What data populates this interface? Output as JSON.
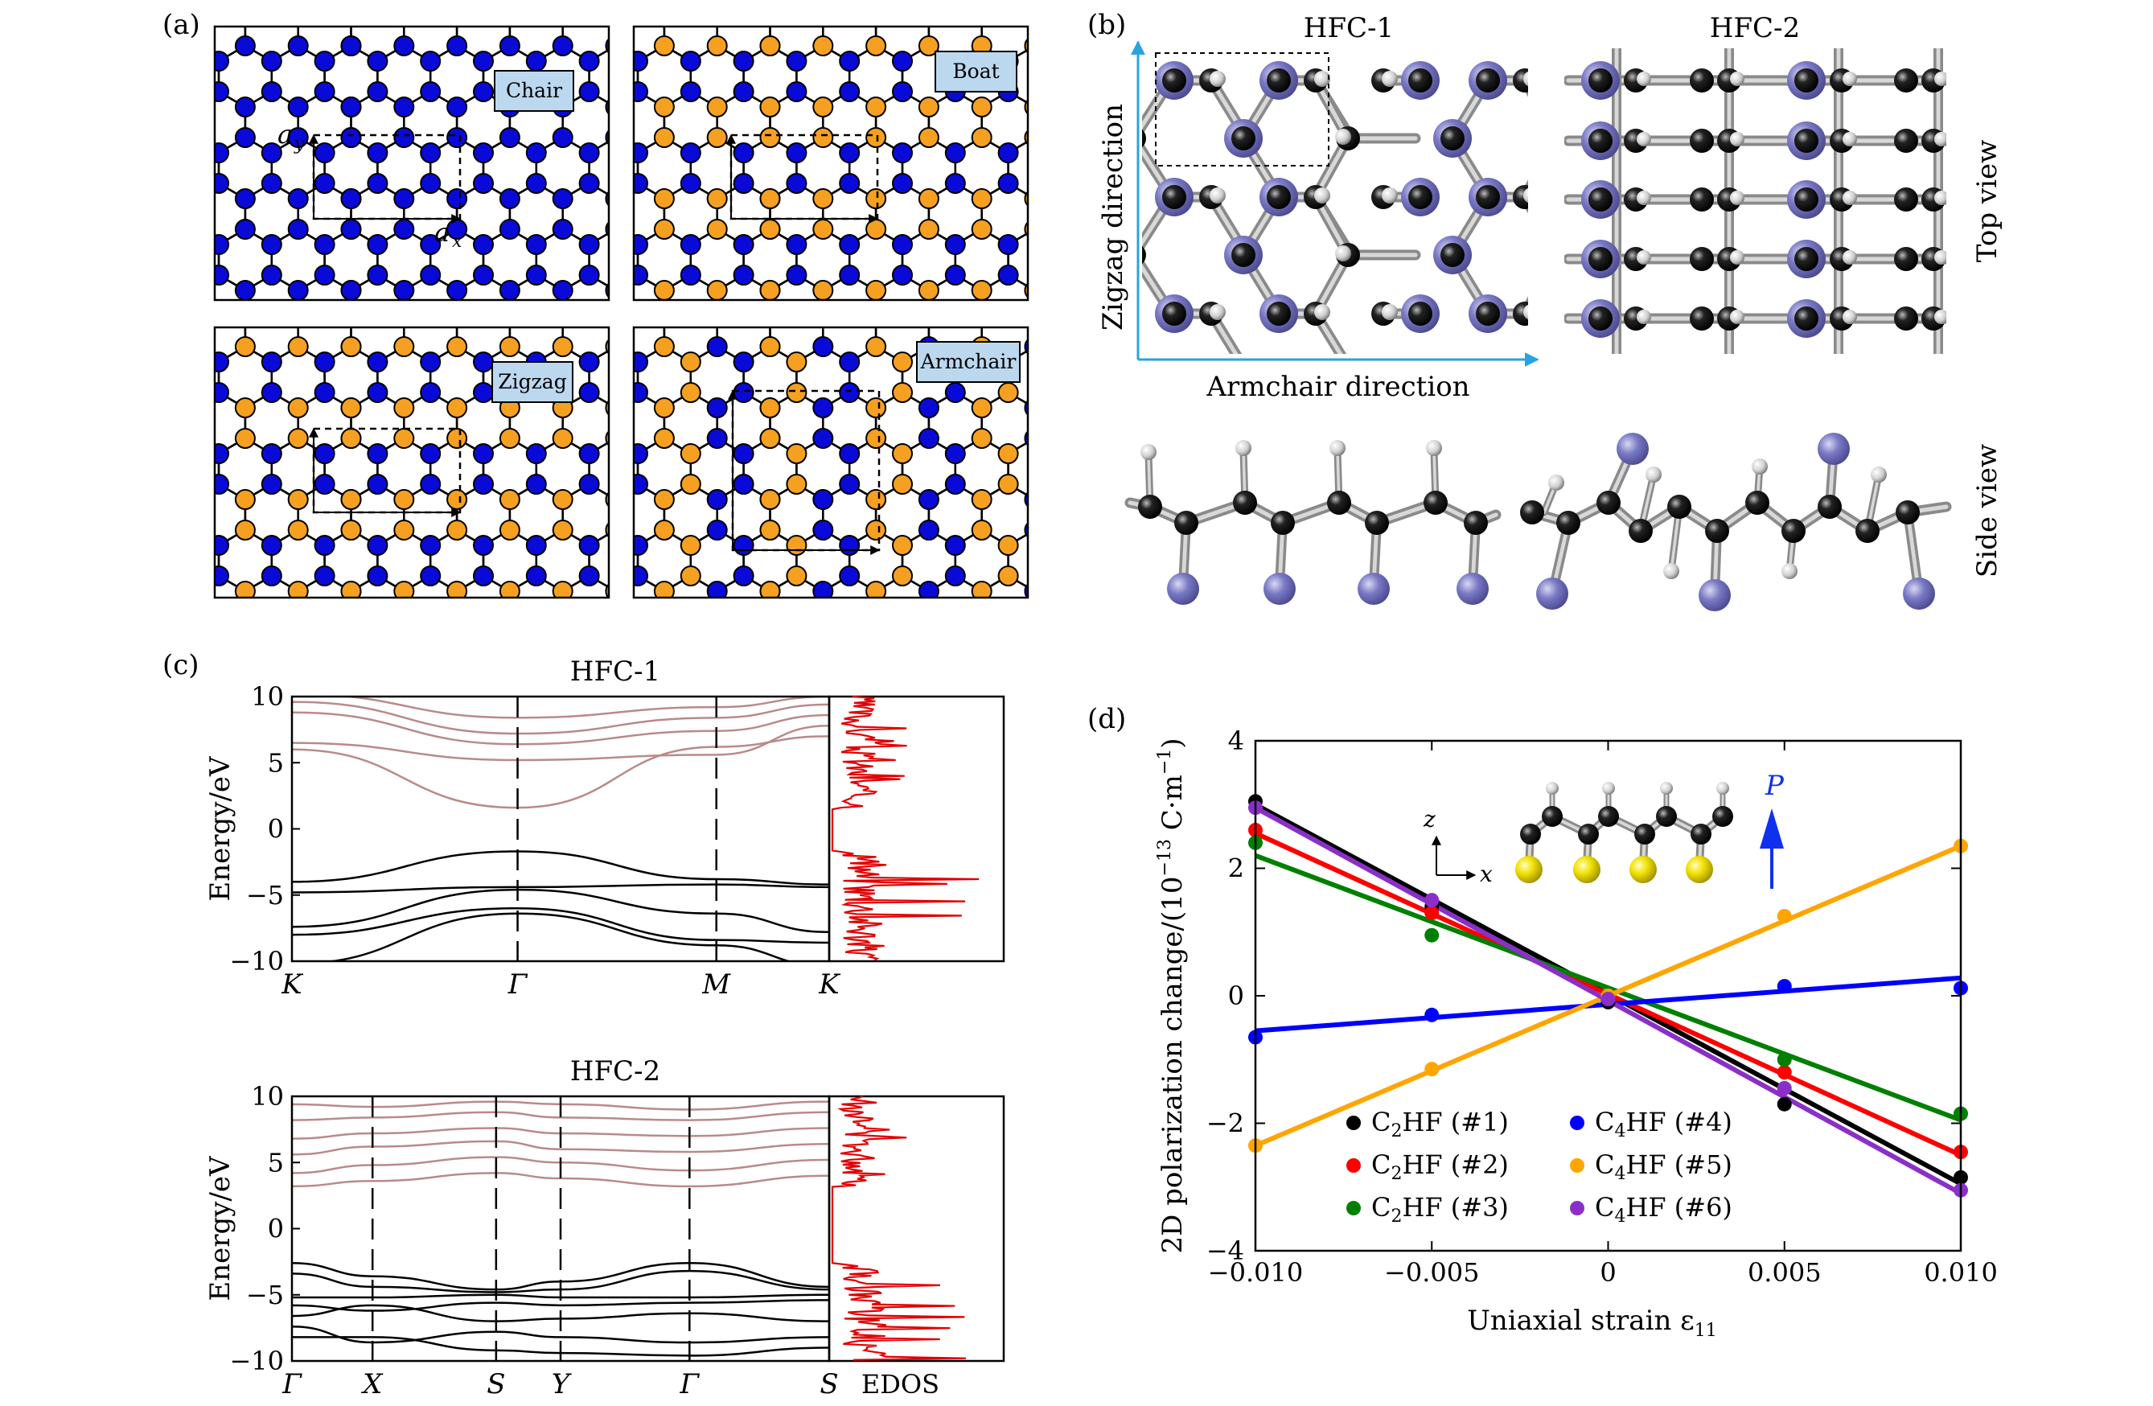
{
  "panels": {
    "a": {
      "label": "(a)",
      "tiles": [
        "Chair",
        "Boat",
        "Zigzag",
        "Armchair"
      ],
      "vector_x": "a",
      "vector_x_sub": "x",
      "vector_y": "a",
      "vector_y_sub": "y"
    },
    "b": {
      "label": "(b)",
      "title_left": "HFC-1",
      "title_right": "HFC-2",
      "zigzag_dir": "Zigzag direction",
      "armchair_dir": "Armchair direction",
      "top_view": "Top view",
      "side_view": "Side view"
    },
    "c": {
      "label": "(c)",
      "ylabel": "Energy/eV",
      "edos_label": "EDOS",
      "colors": {
        "conduction": "#b98a8a",
        "valence": "#000000",
        "edos": "#e00000"
      }
    },
    "d": {
      "label": "(d)",
      "ylabel": "2D polarization change/(10",
      "ylabel_exp": "−13",
      "ylabel_unit": " C·m",
      "ylabel_unit_exp": "−1",
      "ylabel_close": ")",
      "xlabel": "Uniaxial strain ε",
      "xlabel_sub": "11",
      "inset_z": "z",
      "inset_x": "x",
      "inset_p": "P"
    }
  },
  "chart_data": [
    {
      "type": "line",
      "title": "HFC-1",
      "ylabel": "Energy/eV",
      "ylim": [
        -10,
        10
      ],
      "yticks": [
        "10",
        "5",
        "0",
        "−5",
        "−10"
      ],
      "ytick_values": [
        10,
        5,
        0,
        -5,
        -10
      ],
      "kpoints": [
        "K",
        "Γ",
        "M",
        "K"
      ],
      "kpoint_positions": [
        0,
        0.42,
        0.79,
        1
      ],
      "series_groups": [
        {
          "name": "conduction",
          "bands": [
            [
              [
                0,
                6.0
              ],
              [
                0.42,
                1.6
              ],
              [
                0.79,
                6.2
              ],
              [
                1,
                7.0
              ]
            ],
            [
              [
                0,
                6.5
              ],
              [
                0.42,
                5.2
              ],
              [
                0.79,
                5.6
              ],
              [
                1,
                7.8
              ]
            ],
            [
              [
                0,
                8.8
              ],
              [
                0.42,
                6.4
              ],
              [
                0.79,
                7.4
              ],
              [
                1,
                8.6
              ]
            ],
            [
              [
                0,
                9.6
              ],
              [
                0.42,
                7.2
              ],
              [
                0.79,
                8.4
              ],
              [
                1,
                9.4
              ]
            ],
            [
              [
                0,
                10.2
              ],
              [
                0.42,
                8.4
              ],
              [
                0.79,
                9.2
              ],
              [
                1,
                10.0
              ]
            ]
          ]
        },
        {
          "name": "valence",
          "bands": [
            [
              [
                0,
                -4.0
              ],
              [
                0.42,
                -1.7
              ],
              [
                0.79,
                -3.8
              ],
              [
                1,
                -4.2
              ]
            ],
            [
              [
                0,
                -4.8
              ],
              [
                0.42,
                -4.4
              ],
              [
                0.79,
                -4.2
              ],
              [
                1,
                -4.4
              ]
            ],
            [
              [
                0,
                -7.4
              ],
              [
                0.42,
                -4.6
              ],
              [
                0.79,
                -6.4
              ],
              [
                1,
                -7.8
              ]
            ],
            [
              [
                0,
                -8.0
              ],
              [
                0.42,
                -6.0
              ],
              [
                0.79,
                -8.4
              ],
              [
                1,
                -8.6
              ]
            ],
            [
              [
                0,
                -10.2
              ],
              [
                0.42,
                -6.4
              ],
              [
                0.79,
                -8.8
              ],
              [
                1,
                -10.4
              ]
            ]
          ]
        }
      ]
    },
    {
      "type": "line",
      "title": "HFC-2",
      "ylabel": "Energy/eV",
      "ylim": [
        -10,
        10
      ],
      "yticks": [
        "10",
        "5",
        "0",
        "−5",
        "−10"
      ],
      "ytick_values": [
        10,
        5,
        0,
        -5,
        -10
      ],
      "kpoints": [
        "Γ",
        "X",
        "S",
        "Y",
        "Γ",
        "S"
      ],
      "kpoint_positions": [
        0,
        0.15,
        0.38,
        0.5,
        0.74,
        1
      ],
      "xlabel_extra": "EDOS",
      "series_groups": [
        {
          "name": "conduction",
          "bands": [
            [
              [
                0,
                3.2
              ],
              [
                0.15,
                3.6
              ],
              [
                0.38,
                4.2
              ],
              [
                0.5,
                3.8
              ],
              [
                0.74,
                3.2
              ],
              [
                1,
                4.0
              ]
            ],
            [
              [
                0,
                4.2
              ],
              [
                0.15,
                4.8
              ],
              [
                0.38,
                5.4
              ],
              [
                0.5,
                5.0
              ],
              [
                0.74,
                4.4
              ],
              [
                1,
                5.2
              ]
            ],
            [
              [
                0,
                5.6
              ],
              [
                0.15,
                6.2
              ],
              [
                0.38,
                6.6
              ],
              [
                0.5,
                6.0
              ],
              [
                0.74,
                5.8
              ],
              [
                1,
                6.4
              ]
            ],
            [
              [
                0,
                6.8
              ],
              [
                0.15,
                7.2
              ],
              [
                0.38,
                7.6
              ],
              [
                0.5,
                7.2
              ],
              [
                0.74,
                7.0
              ],
              [
                1,
                7.6
              ]
            ],
            [
              [
                0,
                8.2
              ],
              [
                0.15,
                8.4
              ],
              [
                0.38,
                8.8
              ],
              [
                0.5,
                8.4
              ],
              [
                0.74,
                8.2
              ],
              [
                1,
                8.8
              ]
            ],
            [
              [
                0,
                9.4
              ],
              [
                0.15,
                9.2
              ],
              [
                0.38,
                9.6
              ],
              [
                0.5,
                9.4
              ],
              [
                0.74,
                9.0
              ],
              [
                1,
                9.6
              ]
            ]
          ]
        },
        {
          "name": "valence",
          "bands": [
            [
              [
                0,
                -2.6
              ],
              [
                0.15,
                -3.6
              ],
              [
                0.38,
                -4.6
              ],
              [
                0.5,
                -4.0
              ],
              [
                0.74,
                -2.6
              ],
              [
                1,
                -4.4
              ]
            ],
            [
              [
                0,
                -3.4
              ],
              [
                0.15,
                -4.4
              ],
              [
                0.38,
                -4.8
              ],
              [
                0.5,
                -4.6
              ],
              [
                0.74,
                -3.2
              ],
              [
                1,
                -4.6
              ]
            ],
            [
              [
                0,
                -5.2
              ],
              [
                0.15,
                -5.2
              ],
              [
                0.38,
                -5.0
              ],
              [
                0.5,
                -5.2
              ],
              [
                0.74,
                -5.2
              ],
              [
                1,
                -5.0
              ]
            ],
            [
              [
                0,
                -5.8
              ],
              [
                0.15,
                -6.2
              ],
              [
                0.38,
                -5.6
              ],
              [
                0.5,
                -5.8
              ],
              [
                0.74,
                -5.6
              ],
              [
                1,
                -5.4
              ]
            ],
            [
              [
                0,
                -6.6
              ],
              [
                0.15,
                -5.8
              ],
              [
                0.38,
                -7.0
              ],
              [
                0.5,
                -6.8
              ],
              [
                0.74,
                -6.4
              ],
              [
                1,
                -7.0
              ]
            ],
            [
              [
                0,
                -7.4
              ],
              [
                0.15,
                -8.6
              ],
              [
                0.38,
                -7.8
              ],
              [
                0.5,
                -8.2
              ],
              [
                0.74,
                -8.6
              ],
              [
                1,
                -8.2
              ]
            ],
            [
              [
                0,
                -8.2
              ],
              [
                0.15,
                -8.2
              ],
              [
                0.38,
                -9.2
              ],
              [
                0.5,
                -9.4
              ],
              [
                0.74,
                -9.6
              ],
              [
                1,
                -9.0
              ]
            ]
          ]
        }
      ]
    },
    {
      "type": "scatter",
      "xlabel": "Uniaxial strain ε11",
      "ylabel": "2D polarization change/(10−13 C·m−1)",
      "xlim": [
        -0.01,
        0.01
      ],
      "ylim": [
        -4,
        4
      ],
      "xticks": [
        "−0.010",
        "−0.005",
        "0",
        "0.005",
        "0.010"
      ],
      "xtick_values": [
        -0.01,
        -0.005,
        0,
        0.005,
        0.01
      ],
      "yticks": [
        "4",
        "2",
        "0",
        "−2",
        "−4"
      ],
      "ytick_values": [
        4,
        2,
        0,
        -2,
        -4
      ],
      "x": [
        -0.01,
        -0.005,
        0,
        0.005,
        0.01
      ],
      "legend_position": "bottom-left",
      "series": [
        {
          "name": "C2HF (#1)",
          "base": "C",
          "sub": "2",
          "rest": "HF (#1)",
          "color": "#000000",
          "values": [
            3.05,
            1.4,
            -0.1,
            -1.7,
            -2.85
          ],
          "fit": [
            3.0,
            -2.95
          ]
        },
        {
          "name": "C2HF (#2)",
          "base": "C",
          "sub": "2",
          "rest": "HF (#2)",
          "color": "#ff0000",
          "values": [
            2.6,
            1.3,
            -0.05,
            -1.2,
            -2.45
          ],
          "fit": [
            2.55,
            -2.5
          ]
        },
        {
          "name": "C2HF (#3)",
          "base": "C",
          "sub": "2",
          "rest": "HF (#3)",
          "color": "#008000",
          "values": [
            2.4,
            0.95,
            -0.05,
            -1.0,
            -1.85
          ],
          "fit": [
            2.2,
            -1.95
          ]
        },
        {
          "name": "C4HF (#4)",
          "base": "C",
          "sub": "4",
          "rest": "HF (#4)",
          "color": "#0000ff",
          "values": [
            -0.65,
            -0.3,
            -0.05,
            0.15,
            0.12
          ],
          "fit": [
            -0.55,
            0.28
          ]
        },
        {
          "name": "C4HF (#5)",
          "base": "C",
          "sub": "4",
          "rest": "HF (#5)",
          "color": "#ffa500",
          "values": [
            -2.35,
            -1.15,
            0.0,
            1.25,
            2.35
          ],
          "fit": [
            -2.35,
            2.35
          ]
        },
        {
          "name": "C4HF (#6)",
          "base": "C",
          "sub": "4",
          "rest": "HF (#6)",
          "color": "#8b2fc9",
          "values": [
            2.95,
            1.5,
            -0.05,
            -1.45,
            -3.05
          ],
          "fit": [
            2.95,
            -3.1
          ]
        }
      ]
    }
  ]
}
